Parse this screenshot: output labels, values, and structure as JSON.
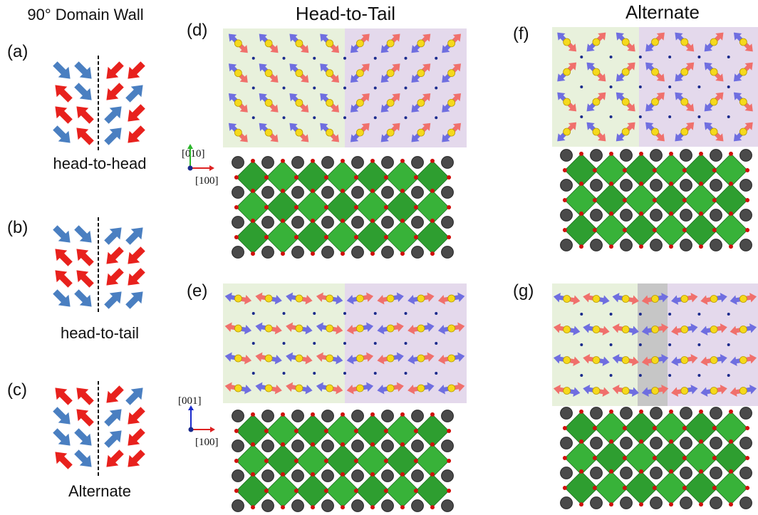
{
  "header": {
    "title": "90° Domain Wall"
  },
  "schematics": [
    {
      "label": "(a)",
      "caption": "head-to-head"
    },
    {
      "label": "(b)",
      "caption": "head-to-tail"
    },
    {
      "label": "(c)",
      "caption": "Alternate"
    }
  ],
  "columns": [
    {
      "title": "Head-to-Tail"
    },
    {
      "title": "Alternate"
    }
  ],
  "panels": [
    {
      "label": "(d)"
    },
    {
      "label": "(e)"
    },
    {
      "label": "(f)"
    },
    {
      "label": "(g)"
    }
  ],
  "axes": [
    {
      "vertical": "[010]",
      "horizontal": "[100]"
    },
    {
      "vertical": "[001]",
      "horizontal": "[100]"
    }
  ]
}
